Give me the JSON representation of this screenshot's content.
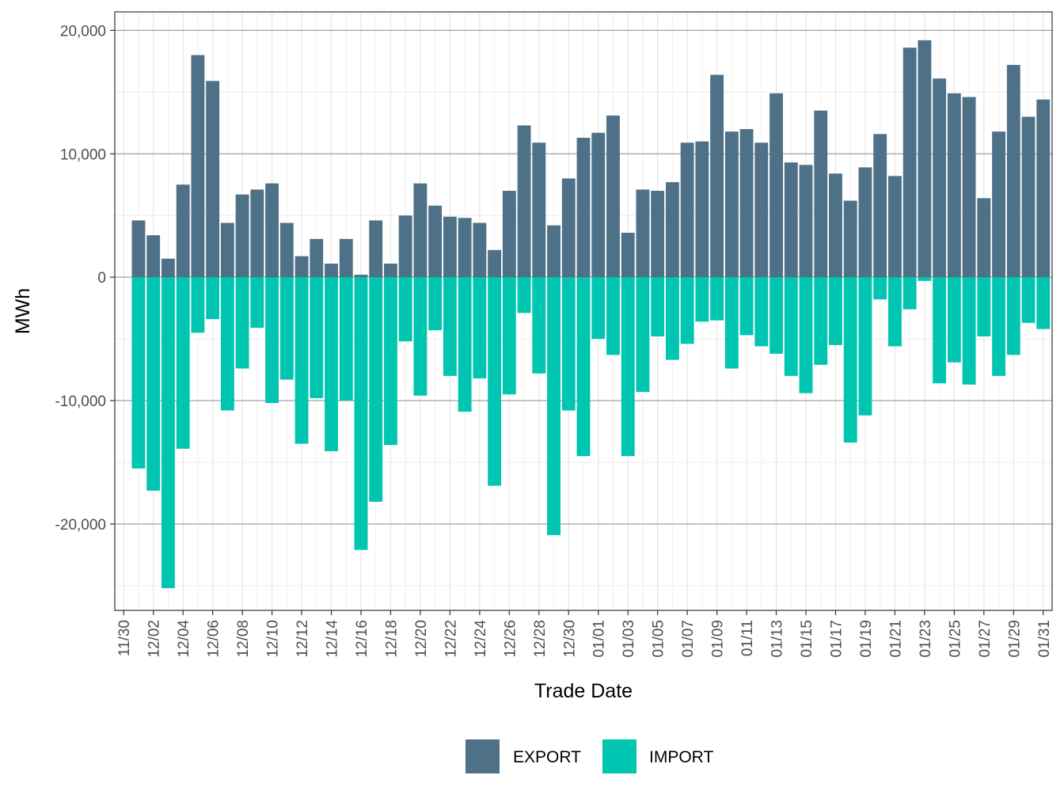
{
  "chart_data": {
    "type": "bar",
    "stacked": true,
    "title": "",
    "xlabel": "Trade Date",
    "ylabel": "MWh",
    "ylim": [
      -27000,
      21500
    ],
    "yticks": [
      20000,
      10000,
      0,
      -10000,
      -20000
    ],
    "ytick_labels": [
      "20,000",
      "10,000",
      "0",
      "-10,000",
      "-20,000"
    ],
    "grid": true,
    "legend_position": "bottom",
    "categories": [
      "11/30",
      "12/01",
      "12/02",
      "12/03",
      "12/04",
      "12/05",
      "12/06",
      "12/07",
      "12/08",
      "12/09",
      "12/10",
      "12/11",
      "12/12",
      "12/13",
      "12/14",
      "12/15",
      "12/16",
      "12/17",
      "12/18",
      "12/19",
      "12/20",
      "12/21",
      "12/22",
      "12/23",
      "12/24",
      "12/25",
      "12/26",
      "12/27",
      "12/28",
      "12/29",
      "12/30",
      "12/31",
      "01/01",
      "01/02",
      "01/03",
      "01/04",
      "01/05",
      "01/06",
      "01/07",
      "01/08",
      "01/09",
      "01/10",
      "01/11",
      "01/12",
      "01/13",
      "01/14",
      "01/15",
      "01/16",
      "01/17",
      "01/18",
      "01/19",
      "01/20",
      "01/21",
      "01/22",
      "01/23",
      "01/24",
      "01/25",
      "01/26",
      "01/27",
      "01/28",
      "01/29",
      "01/30",
      "01/31"
    ],
    "xtick_labels": [
      "11/30",
      "12/02",
      "12/04",
      "12/06",
      "12/08",
      "12/10",
      "12/12",
      "12/14",
      "12/16",
      "12/18",
      "12/20",
      "12/22",
      "12/24",
      "12/26",
      "12/28",
      "12/30",
      "01/01",
      "01/03",
      "01/05",
      "01/07",
      "01/09",
      "01/11",
      "01/13",
      "01/15",
      "01/17",
      "01/19",
      "01/21",
      "01/23",
      "01/25",
      "01/27",
      "01/29",
      "01/31"
    ],
    "series": [
      {
        "name": "EXPORT",
        "color": "#4e7187",
        "values": [
          null,
          4600,
          3400,
          1500,
          7500,
          18000,
          15900,
          4400,
          6700,
          7100,
          7600,
          4400,
          1700,
          3100,
          1100,
          3100,
          200,
          4600,
          1100,
          5000,
          7600,
          5800,
          4900,
          4800,
          4400,
          2200,
          7000,
          12300,
          10900,
          4200,
          8000,
          11300,
          11700,
          13100,
          3600,
          7100,
          7000,
          7700,
          10900,
          11000,
          16400,
          11800,
          12000,
          10900,
          14900,
          9300,
          9100,
          13500,
          8400,
          6200,
          8900,
          11600,
          8200,
          18600,
          19200,
          16100,
          14900,
          14600,
          6400,
          11800,
          17200,
          13000,
          14400
        ]
      },
      {
        "name": "IMPORT",
        "color": "#00c5b0",
        "values": [
          null,
          -15500,
          -17300,
          -25200,
          -13900,
          -4500,
          -3400,
          -10800,
          -7400,
          -4100,
          -10200,
          -8300,
          -13500,
          -9800,
          -14100,
          -10000,
          -22100,
          -18200,
          -13600,
          -5200,
          -9600,
          -4300,
          -8000,
          -10900,
          -8200,
          -16900,
          -9500,
          -2900,
          -7800,
          -20900,
          -10800,
          -14500,
          -5000,
          -6300,
          -14500,
          -9300,
          -4800,
          -6700,
          -5400,
          -3600,
          -3500,
          -7400,
          -4700,
          -5600,
          -6200,
          -8000,
          -9400,
          -7100,
          -5500,
          -13400,
          -11200,
          -1800,
          -5600,
          -2600,
          -300,
          -8600,
          -6900,
          -8700,
          -4800,
          -8000,
          -6300,
          -3700,
          -4200
        ]
      }
    ]
  }
}
